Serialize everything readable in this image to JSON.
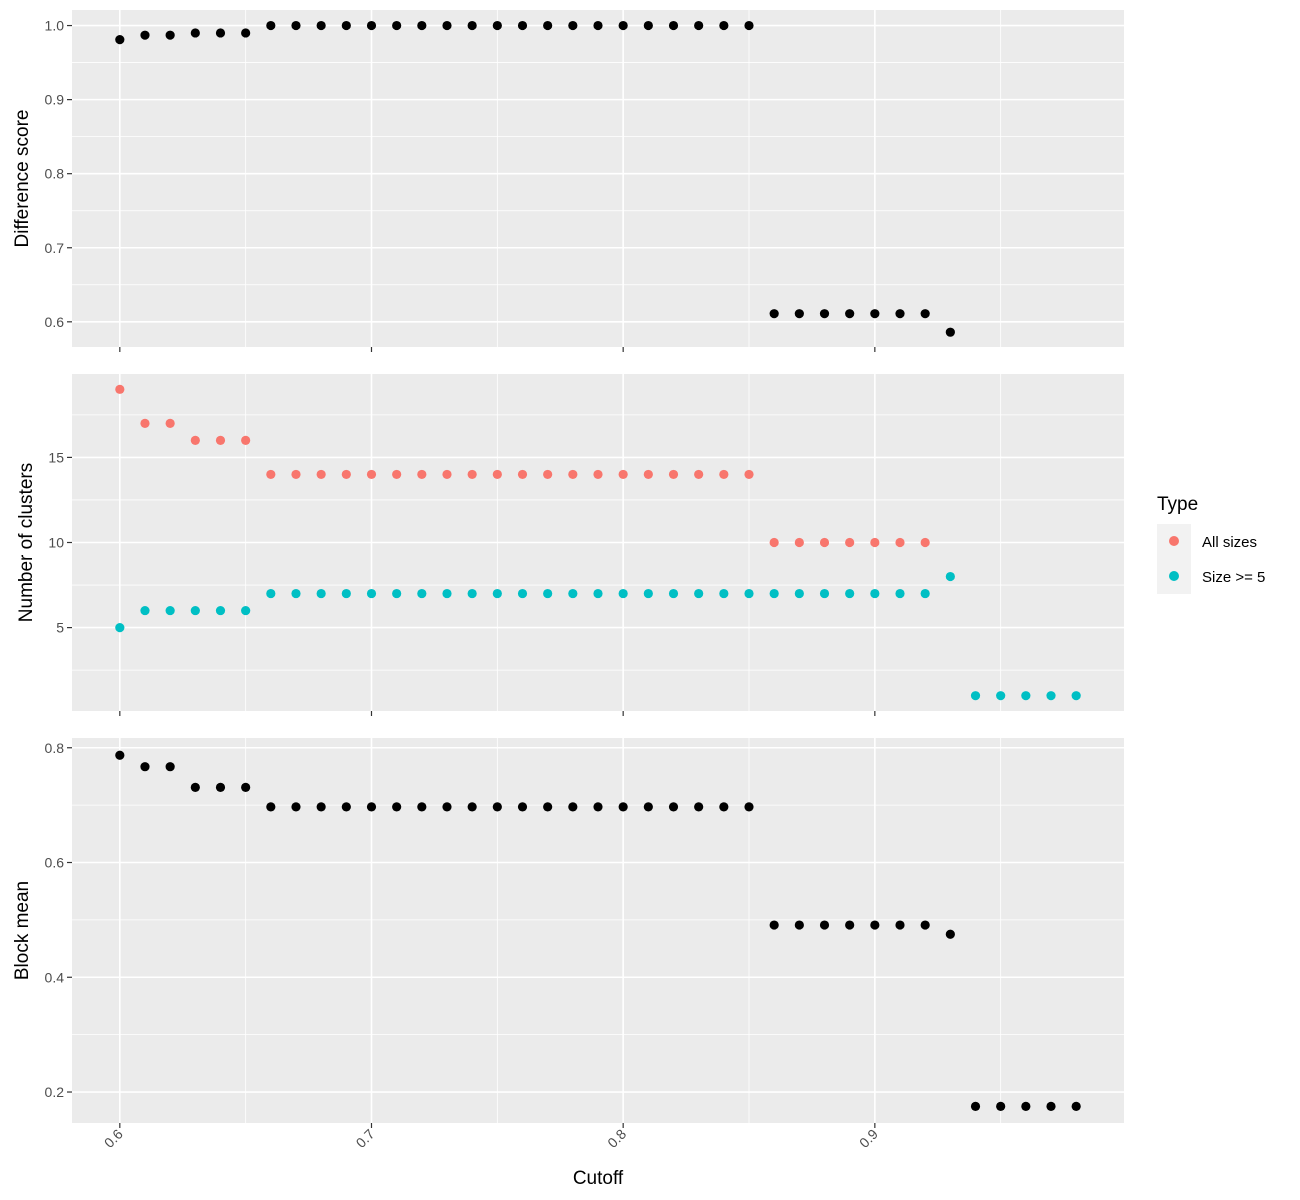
{
  "chart_data": {
    "type": "scatter",
    "facets": "vertical",
    "xlabel": "Cutoff",
    "xlim": [
      0.581,
      0.999
    ],
    "x_ticks": [
      0.6,
      0.7,
      0.8,
      0.9
    ],
    "x_tick_labels": [
      "0.6",
      "0.7",
      "0.8",
      "0.9"
    ],
    "x": [
      0.6,
      0.61,
      0.62,
      0.63,
      0.64,
      0.65,
      0.66,
      0.67,
      0.68,
      0.69,
      0.7,
      0.71,
      0.72,
      0.73,
      0.74,
      0.75,
      0.76,
      0.77,
      0.78,
      0.79,
      0.8,
      0.81,
      0.82,
      0.83,
      0.84,
      0.85,
      0.86,
      0.87,
      0.88,
      0.89,
      0.9,
      0.91,
      0.92,
      0.93,
      0.94,
      0.95,
      0.96,
      0.97,
      0.98
    ],
    "grid": true,
    "legend": {
      "title": "Type",
      "placement": "right",
      "entries": [
        {
          "label": "All sizes",
          "color": "#F8766D"
        },
        {
          "label": "Size >= 5",
          "color": "#00BFC4"
        }
      ]
    },
    "panels": [
      {
        "ylabel": "Difference score",
        "ylim": [
          0.566,
          1.021
        ],
        "y_ticks": [
          0.6,
          0.7,
          0.8,
          0.9,
          1.0
        ],
        "y_tick_labels": [
          "0.6",
          "0.7",
          "0.8",
          "0.9",
          "1.0"
        ],
        "series": [
          {
            "color": "#000000",
            "values": [
              0.981,
              0.987,
              0.987,
              0.99,
              0.99,
              0.99,
              1.0,
              1.0,
              1.0,
              1.0,
              1.0,
              1.0,
              1.0,
              1.0,
              1.0,
              1.0,
              1.0,
              1.0,
              1.0,
              1.0,
              1.0,
              1.0,
              1.0,
              1.0,
              1.0,
              1.0,
              0.611,
              0.611,
              0.611,
              0.611,
              0.611,
              0.611,
              0.611,
              0.586,
              null,
              null,
              null,
              null,
              null
            ]
          }
        ]
      },
      {
        "ylabel": "Number of clusters",
        "ylim": [
          0.1,
          19.9
        ],
        "y_ticks": [
          5,
          10,
          15
        ],
        "y_tick_labels": [
          "5",
          "10",
          "15"
        ],
        "series": [
          {
            "name": "All sizes",
            "color": "#F8766D",
            "values": [
              19,
              17,
              17,
              16,
              16,
              16,
              14,
              14,
              14,
              14,
              14,
              14,
              14,
              14,
              14,
              14,
              14,
              14,
              14,
              14,
              14,
              14,
              14,
              14,
              14,
              14,
              10,
              10,
              10,
              10,
              10,
              10,
              10,
              null,
              null,
              null,
              null,
              null,
              null
            ]
          },
          {
            "name": "Size >= 5",
            "color": "#00BFC4",
            "values": [
              5,
              6,
              6,
              6,
              6,
              6,
              7,
              7,
              7,
              7,
              7,
              7,
              7,
              7,
              7,
              7,
              7,
              7,
              7,
              7,
              7,
              7,
              7,
              7,
              7,
              7,
              7,
              7,
              7,
              7,
              7,
              7,
              7,
              8,
              1,
              1,
              1,
              1,
              1
            ]
          }
        ]
      },
      {
        "ylabel": "Block mean",
        "ylim": [
          0.146,
          0.817
        ],
        "y_ticks": [
          0.2,
          0.4,
          0.6,
          0.8
        ],
        "y_tick_labels": [
          "0.2",
          "0.4",
          "0.6",
          "0.8"
        ],
        "series": [
          {
            "color": "#000000",
            "values": [
              0.787,
              0.767,
              0.767,
              0.731,
              0.731,
              0.731,
              0.697,
              0.697,
              0.697,
              0.697,
              0.697,
              0.697,
              0.697,
              0.697,
              0.697,
              0.697,
              0.697,
              0.697,
              0.697,
              0.697,
              0.697,
              0.697,
              0.697,
              0.697,
              0.697,
              0.697,
              0.491,
              0.491,
              0.491,
              0.491,
              0.491,
              0.491,
              0.491,
              0.475,
              0.175,
              0.175,
              0.175,
              0.175,
              0.175
            ]
          }
        ]
      }
    ]
  }
}
